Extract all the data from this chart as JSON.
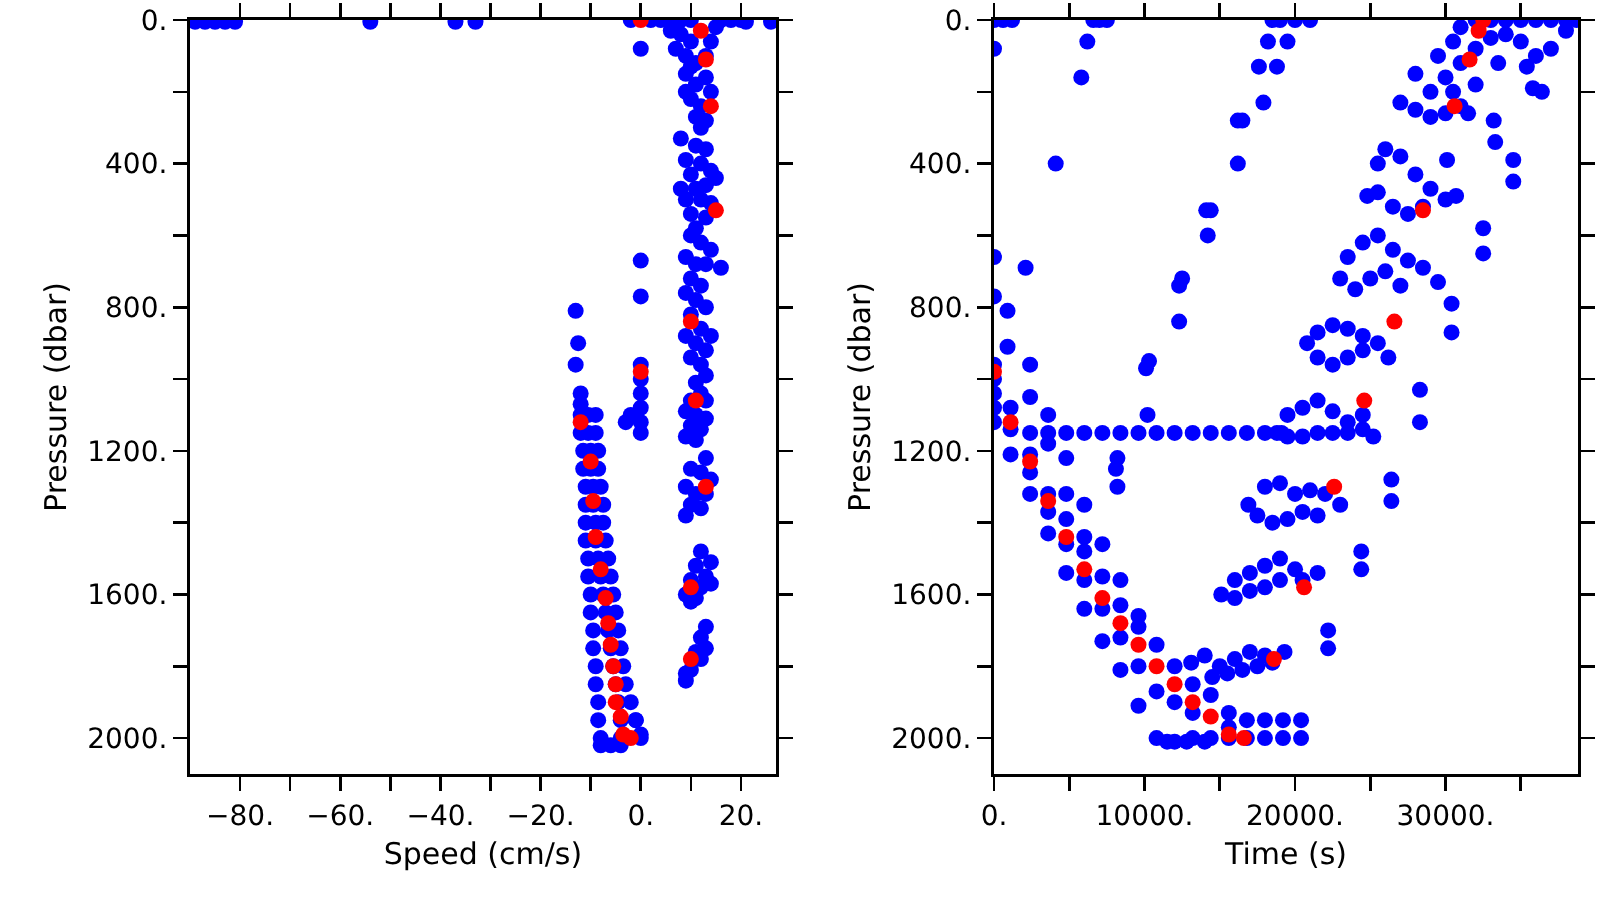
{
  "chart_data": [
    {
      "type": "scatter",
      "xlabel": "Speed (cm/s)",
      "ylabel": "Pressure (dbar)",
      "marker": "circle",
      "xlim": [
        -90,
        27
      ],
      "ylim": [
        2100,
        0
      ],
      "xticks": [
        {
          "value": -80,
          "label": "−80."
        },
        {
          "value": -70,
          "label": null
        },
        {
          "value": -60,
          "label": "−60."
        },
        {
          "value": -50,
          "label": null
        },
        {
          "value": -40,
          "label": "−40."
        },
        {
          "value": -30,
          "label": null
        },
        {
          "value": -20,
          "label": "−20."
        },
        {
          "value": -10,
          "label": null
        },
        {
          "value": 0,
          "label": "0."
        },
        {
          "value": 10,
          "label": null
        },
        {
          "value": 20,
          "label": "20."
        }
      ],
      "yticks": [
        {
          "value": 0,
          "label": "0."
        },
        {
          "value": 200,
          "label": null
        },
        {
          "value": 400,
          "label": "400."
        },
        {
          "value": 600,
          "label": null
        },
        {
          "value": 800,
          "label": "800."
        },
        {
          "value": 1000,
          "label": null
        },
        {
          "value": 1200,
          "label": "1200."
        },
        {
          "value": 1400,
          "label": null
        },
        {
          "value": 1600,
          "label": "1600."
        },
        {
          "value": 1800,
          "label": null
        },
        {
          "value": 2000,
          "label": "2000."
        }
      ],
      "series": [
        {
          "color": "#0000ff",
          "x": [
            -89,
            -87,
            -85,
            -83,
            -81,
            -54,
            -37,
            -33,
            21,
            26,
            -2,
            2,
            4,
            6,
            8,
            10,
            16,
            18,
            20,
            0,
            0,
            0,
            0,
            0,
            0,
            0,
            0,
            0,
            -2,
            -3,
            -1,
            0,
            -13,
            -12.5,
            -13,
            -12,
            -12,
            -12,
            -10.5,
            -9,
            -12,
            -10.5,
            -9,
            -11.5,
            -10,
            -8.5,
            -11.5,
            -10,
            -8.5,
            -11,
            -9.5,
            -8,
            -11,
            -9.5,
            -7.5,
            -11,
            -9,
            -7.5,
            -11,
            -9,
            -7,
            -10.5,
            -8.5,
            -6.5,
            -10.5,
            -8,
            -6,
            -10,
            -7.5,
            -5.5,
            -10,
            -7,
            -5,
            -9.5,
            -6.5,
            -4.5,
            -9.5,
            -6,
            -4,
            -9,
            -5.5,
            -3.5,
            -9,
            -5,
            -3,
            -8.5,
            -4.5,
            -2,
            -8.5,
            -4,
            -1,
            -8,
            -4,
            0,
            -8,
            -6,
            -4,
            6,
            8,
            10,
            15,
            7,
            9,
            11,
            13,
            14,
            9,
            11,
            13,
            14,
            10,
            12,
            11,
            13,
            12,
            9,
            10,
            8,
            11,
            13,
            9,
            12,
            10,
            14,
            8,
            11,
            13,
            15,
            9,
            12,
            14,
            10,
            13,
            11,
            10,
            12,
            14,
            9,
            11,
            13,
            16,
            10,
            12,
            9,
            11,
            13,
            10,
            12,
            14,
            9,
            11,
            13,
            10,
            12,
            13,
            11,
            12,
            10,
            13,
            9,
            11,
            13,
            10,
            12,
            9,
            11,
            13,
            10,
            12,
            14,
            9,
            11,
            13,
            10,
            12,
            9,
            12,
            14,
            11,
            13,
            10,
            12,
            14,
            9,
            11,
            10,
            13,
            12,
            11,
            13,
            12,
            9,
            10,
            9
          ],
          "values": [
            5,
            5,
            5,
            5,
            5,
            5,
            5,
            5,
            5,
            5,
            0,
            0,
            0,
            5,
            0,
            0,
            0,
            0,
            0,
            80,
            670,
            770,
            960,
            1000,
            1040,
            1080,
            1120,
            1150,
            1100,
            1120,
            1950,
            1990,
            810,
            900,
            960,
            1040,
            1070,
            1100,
            1100,
            1100,
            1150,
            1150,
            1150,
            1200,
            1200,
            1200,
            1250,
            1250,
            1250,
            1300,
            1300,
            1300,
            1350,
            1350,
            1350,
            1400,
            1400,
            1400,
            1450,
            1450,
            1450,
            1500,
            1500,
            1500,
            1550,
            1550,
            1550,
            1600,
            1600,
            1600,
            1650,
            1650,
            1650,
            1700,
            1700,
            1700,
            1750,
            1750,
            1750,
            1800,
            1800,
            1800,
            1850,
            1850,
            1850,
            1900,
            1900,
            1900,
            1950,
            1950,
            1950,
            2000,
            2000,
            2000,
            2020,
            2020,
            2020,
            30,
            40,
            60,
            20,
            80,
            100,
            120,
            100,
            60,
            150,
            180,
            160,
            200,
            220,
            240,
            270,
            280,
            300,
            200,
            130,
            330,
            350,
            360,
            390,
            400,
            430,
            420,
            470,
            470,
            460,
            440,
            500,
            500,
            510,
            540,
            550,
            580,
            600,
            620,
            640,
            660,
            680,
            680,
            690,
            720,
            740,
            760,
            780,
            800,
            820,
            860,
            880,
            880,
            900,
            920,
            940,
            960,
            990,
            1010,
            1040,
            1060,
            1060,
            1090,
            1100,
            1110,
            1130,
            1140,
            1160,
            1170,
            1220,
            1250,
            1260,
            1280,
            1300,
            1320,
            1320,
            1350,
            1360,
            1380,
            1480,
            1510,
            1520,
            1550,
            1560,
            1580,
            1570,
            1600,
            1610,
            1620,
            1690,
            1720,
            1760,
            1750,
            1780,
            1820,
            1810,
            1840
          ]
        },
        {
          "color": "#ff0000",
          "x": [
            0,
            12,
            13,
            14,
            15,
            10,
            11,
            13,
            10,
            10,
            0,
            -12,
            -10,
            -9.5,
            -9,
            -8,
            -7,
            -6.5,
            -6,
            -5.5,
            -5,
            -5,
            -4,
            -3.5,
            -2
          ],
          "values": [
            0,
            30,
            110,
            240,
            530,
            840,
            1060,
            1300,
            1580,
            1780,
            980,
            1120,
            1230,
            1340,
            1440,
            1530,
            1610,
            1680,
            1740,
            1800,
            1850,
            1900,
            1940,
            1990,
            2000
          ]
        }
      ]
    },
    {
      "type": "scatter",
      "xlabel": "Time (s)",
      "ylabel": "Pressure (dbar)",
      "marker": "circle",
      "xlim": [
        0,
        38800
      ],
      "ylim": [
        2100,
        0
      ],
      "xticks": [
        {
          "value": 0,
          "label": "0."
        },
        {
          "value": 5000,
          "label": null
        },
        {
          "value": 10000,
          "label": "10000."
        },
        {
          "value": 15000,
          "label": null
        },
        {
          "value": 20000,
          "label": "20000."
        },
        {
          "value": 25000,
          "label": null
        },
        {
          "value": 30000,
          "label": "30000."
        },
        {
          "value": 35000,
          "label": null
        }
      ],
      "yticks": [
        {
          "value": 0,
          "label": "0."
        },
        {
          "value": 200,
          "label": null
        },
        {
          "value": 400,
          "label": "400."
        },
        {
          "value": 600,
          "label": null
        },
        {
          "value": 800,
          "label": "800."
        },
        {
          "value": 1000,
          "label": null
        },
        {
          "value": 1200,
          "label": "1200."
        },
        {
          "value": 1400,
          "label": null
        },
        {
          "value": 1600,
          "label": "1600."
        },
        {
          "value": 1800,
          "label": null
        },
        {
          "value": 2000,
          "label": "2000."
        }
      ],
      "series": [
        {
          "color": "#0000ff",
          "x": [
            0,
            600,
            1200,
            0,
            0,
            0,
            0,
            0,
            0,
            0,
            0,
            6600,
            7000,
            7500,
            6200,
            5800,
            4100,
            18500,
            19000,
            20000,
            21000,
            18200,
            19500,
            17600,
            18800,
            17900,
            16200,
            16500,
            16200,
            14100,
            14400,
            14200,
            12300,
            12500,
            12300,
            10100,
            10300,
            10200,
            8200,
            8100,
            8200,
            2400,
            3600,
            4800,
            6000,
            7200,
            8400,
            9600,
            10800,
            12000,
            13200,
            14400,
            15600,
            16800,
            18000,
            19100,
            1100,
            1100,
            1100,
            2400,
            2400,
            2400,
            3600,
            3600,
            3600,
            4800,
            4800,
            4800,
            6000,
            6000,
            6000,
            7200,
            7200,
            7200,
            8400,
            8400,
            8400,
            9600,
            9600,
            9600,
            10800,
            10800,
            10800,
            12000,
            12000,
            12000,
            13200,
            13200,
            13200,
            14400,
            14400,
            15600,
            15600,
            15600,
            16800,
            16800,
            18000,
            18000,
            19200,
            19200,
            20400,
            20400,
            11500,
            12800,
            14000,
            2100,
            900,
            900,
            2400,
            2400,
            3600,
            3600,
            4800,
            4800,
            6000,
            6000,
            7200,
            8400,
            9600,
            24500,
            25200,
            26400,
            26400,
            24400,
            24400,
            22200,
            22200,
            28300,
            28300,
            30400,
            30400,
            32500,
            32500,
            30700,
            33300,
            34500,
            34500,
            35800,
            36400,
            35400,
            33200,
            30100,
            13100,
            14000,
            15000,
            16000,
            17000,
            18000,
            19300,
            14500,
            15500,
            16500,
            17500,
            18500,
            15100,
            16000,
            17000,
            18000,
            19000,
            20000,
            21500,
            16000,
            17000,
            18000,
            19000,
            20500,
            16900,
            18000,
            19000,
            20000,
            21000,
            22000,
            23000,
            17500,
            18500,
            19500,
            20500,
            21500,
            18800,
            19500,
            20500,
            21500,
            22500,
            23500,
            24500,
            19500,
            20500,
            21500,
            22500,
            23500,
            20800,
            21500,
            22500,
            23500,
            24500,
            25500,
            26200,
            21500,
            22500,
            23500,
            24500,
            23000,
            23500,
            24500,
            25500,
            26500,
            27500,
            28500,
            29500,
            24000,
            25000,
            26000,
            27000,
            24800,
            25500,
            26000,
            27000,
            28000,
            29000,
            30000,
            25500,
            26500,
            27500,
            28500,
            27000,
            28000,
            29000,
            30000,
            31000,
            28000,
            29500,
            30500,
            31000,
            32000,
            33000,
            34000,
            35000,
            36000,
            37000,
            38000,
            38700,
            29000,
            30000,
            31000,
            32000,
            33000,
            34000,
            35000,
            36000,
            37000,
            38000,
            32000,
            31500,
            33500,
            30500
          ],
          "values": [
            0,
            0,
            0,
            80,
            660,
            770,
            960,
            1000,
            1040,
            1080,
            1120,
            0,
            0,
            0,
            60,
            160,
            400,
            0,
            0,
            0,
            0,
            60,
            60,
            130,
            130,
            230,
            280,
            280,
            400,
            530,
            530,
            600,
            740,
            720,
            840,
            970,
            950,
            1100,
            1220,
            1250,
            1300,
            1150,
            1150,
            1150,
            1150,
            1150,
            1150,
            1150,
            1150,
            1150,
            1150,
            1150,
            1150,
            1150,
            1150,
            1150,
            1080,
            1140,
            1210,
            1210,
            1260,
            1320,
            1320,
            1370,
            1430,
            1390,
            1460,
            1540,
            1480,
            1560,
            1640,
            1550,
            1640,
            1730,
            1630,
            1720,
            1810,
            1690,
            1800,
            1910,
            1740,
            1870,
            2000,
            1800,
            1900,
            2010,
            1850,
            1930,
            2000,
            1880,
            2000,
            1930,
            1970,
            2000,
            1950,
            2000,
            1950,
            2000,
            1950,
            2000,
            1950,
            2000,
            2010,
            2010,
            2010,
            690,
            810,
            910,
            960,
            1050,
            1100,
            1180,
            1220,
            1320,
            1350,
            1440,
            1460,
            1560,
            1660,
            1100,
            1160,
            1280,
            1340,
            1480,
            1530,
            1700,
            1750,
            1030,
            1120,
            790,
            870,
            580,
            650,
            490,
            340,
            390,
            450,
            190,
            200,
            130,
            280,
            390,
            1790,
            1770,
            1800,
            1780,
            1760,
            1770,
            1760,
            1830,
            1820,
            1810,
            1800,
            1790,
            1600,
            1560,
            1540,
            1520,
            1500,
            1530,
            1540,
            1610,
            1590,
            1580,
            1560,
            1560,
            1350,
            1300,
            1290,
            1320,
            1310,
            1320,
            1350,
            1380,
            1400,
            1390,
            1370,
            1380,
            1150,
            1100,
            1080,
            1060,
            1090,
            1120,
            1140,
            1160,
            1160,
            1150,
            1150,
            1150,
            900,
            870,
            850,
            860,
            880,
            900,
            940,
            940,
            960,
            940,
            920,
            720,
            660,
            620,
            600,
            640,
            670,
            690,
            730,
            750,
            720,
            700,
            740,
            490,
            400,
            360,
            380,
            430,
            470,
            500,
            480,
            520,
            540,
            520,
            230,
            250,
            270,
            260,
            240,
            150,
            100,
            60,
            20,
            0,
            0,
            0,
            0,
            0,
            0,
            0,
            0,
            200,
            160,
            120,
            80,
            50,
            40,
            60,
            100,
            80,
            30,
            180,
            260,
            120,
            200
          ]
        },
        {
          "color": "#ff0000",
          "x": [
            0,
            1100,
            2400,
            3600,
            4800,
            6000,
            7200,
            8400,
            9600,
            10800,
            12000,
            13200,
            14400,
            15600,
            16600,
            18600,
            20600,
            22600,
            24600,
            26600,
            28500,
            30600,
            31600,
            32200,
            32500
          ],
          "values": [
            980,
            1120,
            1230,
            1340,
            1440,
            1530,
            1610,
            1680,
            1740,
            1800,
            1850,
            1900,
            1940,
            1990,
            2000,
            1780,
            1580,
            1300,
            1060,
            840,
            530,
            240,
            110,
            30,
            0
          ]
        }
      ]
    }
  ]
}
